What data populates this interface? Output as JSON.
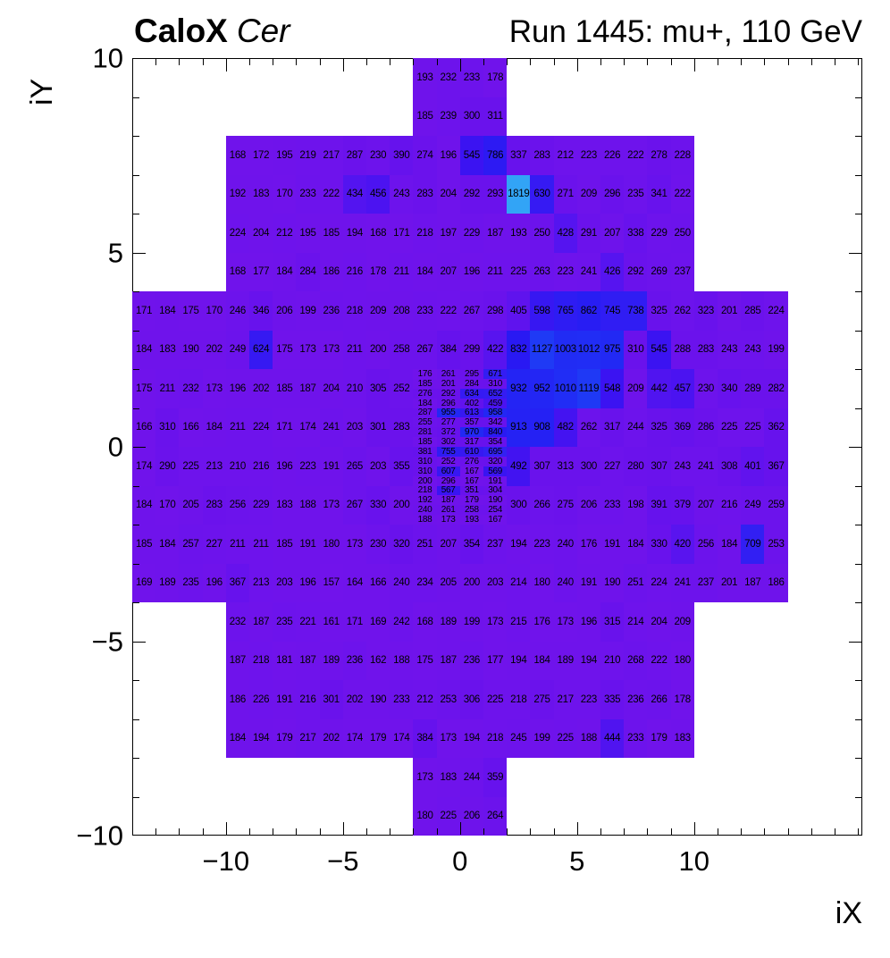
{
  "header": {
    "left_title_bold": "CaloX",
    "left_title_italic": "Cer",
    "right_title": "Run 1445: mu+, 110 GeV"
  },
  "chart_data": {
    "type": "heatmap",
    "title": "CaloX Cer   Run 1445: mu+, 110 GeV",
    "xlabel": "iX",
    "ylabel": "iY",
    "x_range": [
      -14,
      17.2
    ],
    "y_range": [
      -10,
      10
    ],
    "x_ticks": [
      -10,
      -5,
      0,
      5,
      10
    ],
    "y_ticks": [
      -10,
      -5,
      0,
      5,
      10
    ],
    "x_minor_step": 1,
    "y_minor_step": 1,
    "grid": false,
    "legend": "none",
    "cell_text_color": "#000000",
    "axis_color": "#000000",
    "palette_stops": [
      {
        "v": 150,
        "c": "#7113EB"
      },
      {
        "v": 390,
        "c": "#6612ED"
      },
      {
        "v": 430,
        "c": "#5414F0"
      },
      {
        "v": 480,
        "c": "#4413F1"
      },
      {
        "v": 560,
        "c": "#3913F2"
      },
      {
        "v": 700,
        "c": "#3320F3"
      },
      {
        "v": 820,
        "c": "#2A18F3"
      },
      {
        "v": 950,
        "c": "#2326F4"
      },
      {
        "v": 1060,
        "c": "#1F33F5"
      },
      {
        "v": 1200,
        "c": "#1E41F6"
      },
      {
        "v": 1819,
        "c": "#32A4F6"
      }
    ],
    "coarse_rows": [
      {
        "iy": 9.5,
        "segments": [
          {
            "x0": -2,
            "values": [
              193,
              232,
              233,
              178
            ]
          }
        ]
      },
      {
        "iy": 8.5,
        "segments": [
          {
            "x0": -2,
            "values": [
              185,
              239,
              300,
              311
            ]
          }
        ]
      },
      {
        "iy": 7.5,
        "segments": [
          {
            "x0": -10,
            "values": [
              168,
              172,
              195,
              219,
              217,
              287,
              230,
              390,
              274,
              196,
              545,
              786,
              337,
              283,
              212,
              223,
              226,
              222,
              278,
              228
            ]
          }
        ]
      },
      {
        "iy": 6.5,
        "segments": [
          {
            "x0": -10,
            "values": [
              192,
              183,
              170,
              233,
              222,
              434,
              456,
              243,
              283,
              204,
              292,
              293,
              1819,
              630,
              271,
              209,
              296,
              235,
              341,
              222
            ]
          }
        ]
      },
      {
        "iy": 5.5,
        "segments": [
          {
            "x0": -10,
            "values": [
              224,
              204,
              212,
              195,
              185,
              194,
              168,
              171,
              218,
              197,
              229,
              187,
              193,
              250,
              428,
              291,
              207,
              338,
              229,
              250
            ]
          }
        ]
      },
      {
        "iy": 4.5,
        "segments": [
          {
            "x0": -10,
            "values": [
              168,
              177,
              184,
              284,
              186,
              216,
              178,
              211,
              184,
              207,
              196,
              211,
              225,
              263,
              223,
              241,
              426,
              292,
              269,
              237
            ]
          }
        ]
      },
      {
        "iy": 3.5,
        "segments": [
          {
            "x0": -14,
            "values": [
              171,
              184,
              175,
              170,
              246,
              346,
              206,
              199,
              236,
              218,
              209,
              208,
              233,
              222,
              267,
              298,
              405,
              598,
              765,
              862,
              745,
              738,
              325,
              262,
              323,
              201,
              285,
              224
            ]
          }
        ]
      },
      {
        "iy": 2.5,
        "segments": [
          {
            "x0": -14,
            "values": [
              184,
              183,
              190,
              202,
              249,
              624,
              175,
              173,
              173,
              211,
              200,
              258,
              267,
              384,
              299,
              422,
              832,
              1127,
              1003,
              1012,
              975,
              310,
              545,
              288,
              283,
              243,
              243,
              199
            ]
          }
        ]
      },
      {
        "iy": 1.5,
        "segments": [
          {
            "x0": -14,
            "values": [
              175,
              211,
              232,
              173,
              196,
              202,
              185,
              187,
              204,
              210,
              305,
              252
            ]
          },
          {
            "x0": 2,
            "values": [
              932,
              952,
              1010,
              1119,
              548,
              209,
              442,
              457,
              230,
              340,
              289,
              282
            ]
          }
        ]
      },
      {
        "iy": 0.5,
        "segments": [
          {
            "x0": -14,
            "values": [
              166,
              310,
              166,
              184,
              211,
              224,
              171,
              174,
              241,
              203,
              301,
              283
            ]
          },
          {
            "x0": 2,
            "values": [
              913,
              908,
              482,
              262,
              317,
              244,
              325,
              369,
              286,
              225,
              225,
              362
            ]
          }
        ]
      },
      {
        "iy": -0.5,
        "segments": [
          {
            "x0": -14,
            "values": [
              174,
              290,
              225,
              213,
              210,
              216,
              196,
              223,
              191,
              265,
              203,
              355
            ]
          },
          {
            "x0": 2,
            "values": [
              492,
              307,
              313,
              300,
              227,
              280,
              307,
              243,
              241,
              308,
              401,
              367
            ]
          }
        ]
      },
      {
        "iy": -1.5,
        "segments": [
          {
            "x0": -14,
            "values": [
              184,
              170,
              205,
              283,
              256,
              229,
              183,
              188,
              173,
              267,
              330,
              200
            ]
          },
          {
            "x0": 2,
            "values": [
              300,
              266,
              275,
              206,
              233,
              198,
              391,
              379,
              207,
              216,
              249,
              259
            ]
          }
        ]
      },
      {
        "iy": -2.5,
        "segments": [
          {
            "x0": -14,
            "values": [
              185,
              184,
              257,
              227,
              211,
              211,
              185,
              191,
              180,
              173,
              230,
              320,
              251,
              207,
              354,
              237,
              194,
              223,
              240,
              176,
              191,
              184,
              330,
              420,
              256,
              184,
              709,
              253
            ]
          }
        ]
      },
      {
        "iy": -3.5,
        "segments": [
          {
            "x0": -14,
            "values": [
              169,
              189,
              235,
              196,
              367,
              213,
              203,
              196,
              157,
              164,
              166,
              240,
              234,
              205,
              200,
              203,
              214,
              180,
              240,
              191,
              190,
              251,
              224,
              241,
              237,
              201,
              187,
              186
            ]
          }
        ]
      },
      {
        "iy": -4.5,
        "segments": [
          {
            "x0": -10,
            "values": [
              232,
              187,
              235,
              221,
              161,
              171,
              169,
              242,
              168,
              189,
              199,
              173,
              215,
              176,
              173,
              196,
              315,
              214,
              204,
              209
            ]
          }
        ]
      },
      {
        "iy": -5.5,
        "segments": [
          {
            "x0": -10,
            "values": [
              187,
              218,
              181,
              187,
              189,
              236,
              162,
              188,
              175,
              187,
              236,
              177,
              194,
              184,
              189,
              194,
              210,
              268,
              222,
              180
            ]
          }
        ]
      },
      {
        "iy": -6.5,
        "segments": [
          {
            "x0": -10,
            "values": [
              186,
              226,
              191,
              216,
              301,
              202,
              190,
              233,
              212,
              253,
              306,
              225,
              218,
              275,
              217,
              223,
              335,
              236,
              266,
              178
            ]
          }
        ]
      },
      {
        "iy": -7.5,
        "segments": [
          {
            "x0": -10,
            "values": [
              184,
              194,
              179,
              217,
              202,
              174,
              179,
              174,
              384,
              173,
              194,
              218,
              245,
              199,
              225,
              188,
              444,
              233,
              179,
              183
            ]
          }
        ]
      },
      {
        "iy": -8.5,
        "segments": [
          {
            "x0": -2,
            "values": [
              173,
              183,
              244,
              359
            ]
          }
        ]
      },
      {
        "iy": -9.5,
        "segments": [
          {
            "x0": -2,
            "values": [
              180,
              225,
              206,
              264
            ]
          }
        ]
      }
    ],
    "fine_block": {
      "ix_start": -2,
      "ix_end": 2,
      "iy_start": -2,
      "iy_end": 2,
      "cols": 4,
      "rows": 16,
      "values": [
        [
          176,
          261,
          295,
          671
        ],
        [
          185,
          201,
          284,
          310
        ],
        [
          276,
          292,
          634,
          652
        ],
        [
          184,
          296,
          402,
          459
        ],
        [
          287,
          955,
          613,
          958
        ],
        [
          255,
          277,
          357,
          342
        ],
        [
          281,
          372,
          970,
          840
        ],
        [
          185,
          302,
          317,
          354
        ],
        [
          381,
          755,
          610,
          695
        ],
        [
          310,
          252,
          276,
          320
        ],
        [
          310,
          607,
          167,
          569
        ],
        [
          200,
          296,
          167,
          191
        ],
        [
          218,
          567,
          351,
          304
        ],
        [
          192,
          187,
          179,
          190
        ],
        [
          240,
          261,
          258,
          254
        ],
        [
          188,
          173,
          193,
          167
        ]
      ]
    }
  }
}
